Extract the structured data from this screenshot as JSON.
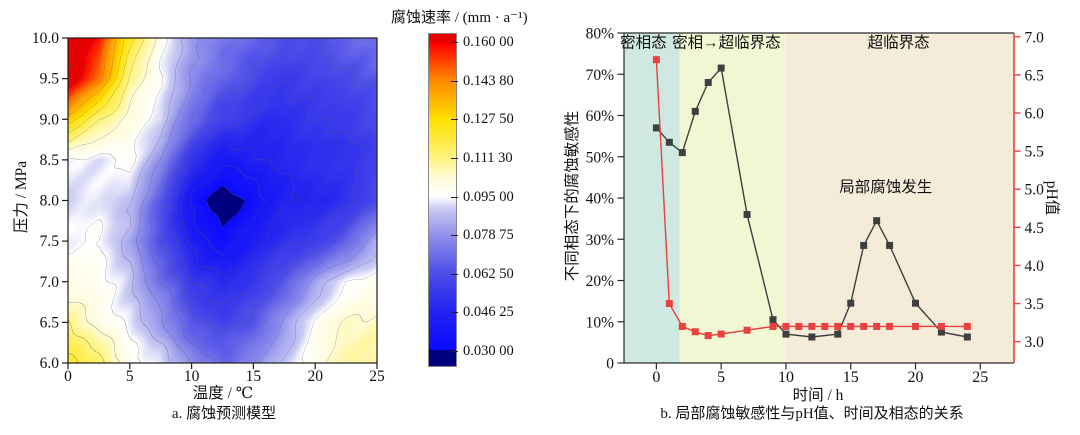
{
  "chart_data": [
    {
      "type": "contour",
      "title": "a. 腐蚀预测模型",
      "xlabel": "温度 / ℃",
      "ylabel": "压力 / MPa",
      "xlim": [
        0,
        25
      ],
      "ylim": [
        6,
        10
      ],
      "xticks": [
        0,
        5,
        10,
        15,
        20,
        25
      ],
      "ytick_values": [
        10.0,
        9.5,
        9.0,
        8.5,
        8.0,
        7.5,
        7.0,
        6.5,
        6.0
      ],
      "ytick_labels": [
        "10.0",
        "9.5",
        "9.0",
        "8.5",
        "8.0",
        "7.5",
        "7.0",
        "6.5",
        "6.0"
      ],
      "colorbar": {
        "title": "腐蚀速率 / (mm · a⁻¹)",
        "vmin": 0.03,
        "vmax": 0.16,
        "tick_values": [
          0.16,
          0.1438,
          0.1275,
          0.1113,
          0.095,
          0.07875,
          0.0625,
          0.04625,
          0.03
        ],
        "tick_labels": [
          "0.160 00",
          "0.143 80",
          "0.127 50",
          "0.111 30",
          "0.095 00",
          "0.078 75",
          "0.062 50",
          "0.046 25",
          "0.030 00"
        ],
        "under_color": "#000080",
        "over_color": "#e60000",
        "stops": [
          [
            0.0,
            "#0a0aff"
          ],
          [
            0.125,
            "#2222f0"
          ],
          [
            0.25,
            "#4d4de8"
          ],
          [
            0.375,
            "#9090ec"
          ],
          [
            0.46,
            "#c9c9f4"
          ],
          [
            0.5,
            "#ffffff"
          ],
          [
            0.56,
            "#fffbd8"
          ],
          [
            0.625,
            "#fff37e"
          ],
          [
            0.75,
            "#ffe100"
          ],
          [
            0.815,
            "#ffb300"
          ],
          [
            0.875,
            "#ff8c00"
          ],
          [
            0.94,
            "#ff4200"
          ],
          [
            1.0,
            "#ff0000"
          ]
        ]
      },
      "grid_temperature": [
        0,
        2.5,
        5,
        7.5,
        10,
        12.5,
        15,
        17.5,
        20,
        22.5,
        25
      ],
      "grid_pressure": [
        10,
        9.5,
        9,
        8.5,
        8,
        7.5,
        7,
        6.5,
        6
      ],
      "values_mm_per_a": [
        [
          0.172,
          0.158,
          0.122,
          0.097,
          0.082,
          0.073,
          0.067,
          0.062,
          0.063,
          0.068,
          0.073
        ],
        [
          0.17,
          0.146,
          0.108,
          0.094,
          0.077,
          0.067,
          0.06,
          0.056,
          0.057,
          0.061,
          0.066
        ],
        [
          0.132,
          0.112,
          0.099,
          0.092,
          0.07,
          0.058,
          0.052,
          0.05,
          0.053,
          0.056,
          0.06
        ],
        [
          0.095,
          0.093,
          0.096,
          0.08,
          0.052,
          0.04,
          0.044,
          0.047,
          0.05,
          0.053,
          0.057
        ],
        [
          0.091,
          0.094,
          0.089,
          0.064,
          0.036,
          0.024,
          0.034,
          0.044,
          0.048,
          0.052,
          0.06
        ],
        [
          0.093,
          0.096,
          0.085,
          0.062,
          0.044,
          0.032,
          0.044,
          0.051,
          0.057,
          0.066,
          0.084
        ],
        [
          0.099,
          0.097,
          0.089,
          0.071,
          0.055,
          0.048,
          0.055,
          0.065,
          0.081,
          0.093,
          0.099
        ],
        [
          0.11,
          0.099,
          0.093,
          0.081,
          0.065,
          0.059,
          0.065,
          0.081,
          0.096,
          0.103,
          0.105
        ],
        [
          0.124,
          0.114,
          0.098,
          0.093,
          0.077,
          0.069,
          0.077,
          0.089,
          0.099,
          0.107,
          0.11
        ]
      ]
    },
    {
      "type": "line",
      "title": "b. 局部腐蚀敏感性与pH值、时间及相态的关系",
      "xlabel": "时间 / h",
      "ylabel_left": "不同相态下的腐蚀敏感性",
      "ylabel_right": "pH值",
      "xlim": [
        -2.5,
        27.6
      ],
      "xticks": [
        0,
        5,
        10,
        15,
        20,
        25
      ],
      "yleft": {
        "min": 0,
        "max": 80,
        "tick_values": [
          0,
          10,
          20,
          30,
          40,
          50,
          60,
          70,
          80
        ],
        "tick_labels": [
          "0",
          "10%",
          "20%",
          "30%",
          "40%",
          "50%",
          "60%",
          "70%",
          "80%"
        ]
      },
      "yright": {
        "min": 2.72,
        "max": 7.05,
        "tick_values": [
          3.0,
          3.5,
          4.0,
          4.5,
          5.0,
          5.5,
          6.0,
          6.5,
          7.0
        ],
        "tick_labels": [
          "3.0",
          "3.5",
          "4.0",
          "4.5",
          "5.0",
          "5.5",
          "6.0",
          "6.5",
          "7.0"
        ],
        "axis_color": "#e8413f"
      },
      "regions": [
        {
          "label": "密相态",
          "from": -2.5,
          "to": 1.8,
          "color": "#cfe9e2",
          "label_x": -1.0
        },
        {
          "label": "密相→超临界态",
          "from": 1.8,
          "to": 10,
          "color": "#f0f7d2",
          "label_x": 5.4
        },
        {
          "label": "超临界态",
          "from": 10,
          "to": 27.6,
          "color": "#f4ebd8",
          "label_x": 18.7
        }
      ],
      "annotation": {
        "text": "局部腐蚀发生",
        "x": 17.7,
        "y_pct": 42.7
      },
      "series": [
        {
          "name": "不同相态下的腐蚀敏感性",
          "axis": "left",
          "color": "#3f3f3f",
          "marker": "square",
          "points": [
            [
              0,
              57
            ],
            [
              1,
              53.5
            ],
            [
              2,
              51
            ],
            [
              3,
              61
            ],
            [
              4,
              68
            ],
            [
              5,
              71.5
            ],
            [
              7,
              36
            ],
            [
              9,
              10.5
            ],
            [
              10,
              7
            ],
            [
              12,
              6.3
            ],
            [
              14,
              7
            ],
            [
              15,
              14.5
            ],
            [
              16,
              28.5
            ],
            [
              17,
              34.5
            ],
            [
              18,
              28.5
            ],
            [
              20,
              14.5
            ],
            [
              22,
              7.5
            ],
            [
              24,
              6.3
            ]
          ]
        },
        {
          "name": "pH值",
          "axis": "right",
          "color": "#e8413f",
          "marker": "square",
          "points": [
            [
              0,
              6.7
            ],
            [
              1,
              3.5
            ],
            [
              2,
              3.2
            ],
            [
              3,
              3.13
            ],
            [
              4,
              3.08
            ],
            [
              5,
              3.1
            ],
            [
              7,
              3.15
            ],
            [
              9,
              3.2
            ],
            [
              10,
              3.2
            ],
            [
              11,
              3.2
            ],
            [
              12,
              3.2
            ],
            [
              13,
              3.2
            ],
            [
              14,
              3.2
            ],
            [
              15,
              3.2
            ],
            [
              16,
              3.2
            ],
            [
              17,
              3.2
            ],
            [
              18,
              3.2
            ],
            [
              20,
              3.2
            ],
            [
              22,
              3.2
            ],
            [
              24,
              3.2
            ]
          ]
        }
      ]
    }
  ]
}
